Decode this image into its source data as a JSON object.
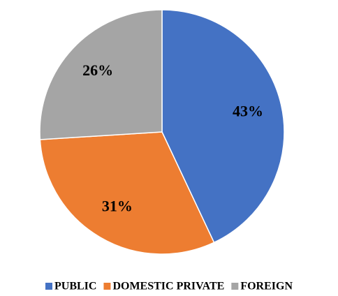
{
  "chart_data": {
    "type": "pie",
    "categories": [
      "PUBLIC",
      "DOMESTIC PRIVATE",
      "FOREIGN"
    ],
    "values": [
      43,
      31,
      26
    ],
    "value_labels": [
      "43%",
      "31%",
      "26%"
    ],
    "colors": [
      "#4472c4",
      "#ed7d31",
      "#a5a5a5"
    ],
    "legend": "bottom"
  }
}
